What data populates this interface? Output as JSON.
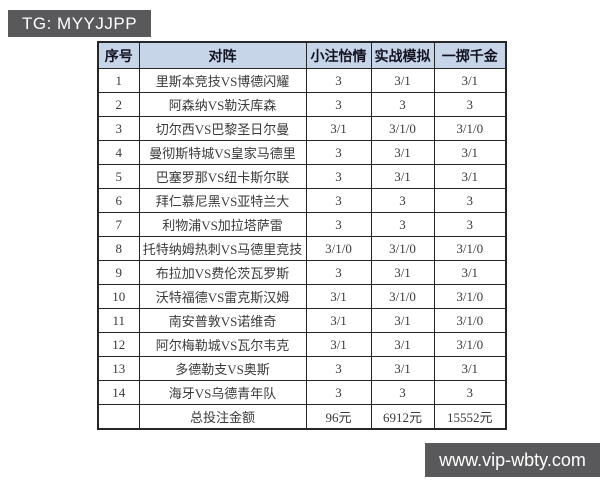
{
  "badges": {
    "tg": "TG: MYYJJPP",
    "site": "www.vip-wbty.com"
  },
  "colors": {
    "badge-bg": "#59595b",
    "badge-text": "#ffffff",
    "header-bg": "#c6d5e8",
    "border-color": "#262626",
    "page-bg": "#ffffff"
  },
  "table": {
    "headers": [
      "序号",
      "对阵",
      "小注怡情",
      "实战模拟",
      "一掷千金"
    ],
    "rows": [
      {
        "no": "1",
        "match": "里斯本竞技VS博德闪耀",
        "small": "3",
        "sim": "3/1",
        "big": "3/1"
      },
      {
        "no": "2",
        "match": "阿森纳VS勒沃库森",
        "small": "3",
        "sim": "3",
        "big": "3"
      },
      {
        "no": "3",
        "match": "切尔西VS巴黎圣日尔曼",
        "small": "3/1",
        "sim": "3/1/0",
        "big": "3/1/0"
      },
      {
        "no": "4",
        "match": "曼彻斯特城VS皇家马德里",
        "small": "3",
        "sim": "3/1",
        "big": "3/1"
      },
      {
        "no": "5",
        "match": "巴塞罗那VS纽卡斯尔联",
        "small": "3",
        "sim": "3/1",
        "big": "3/1"
      },
      {
        "no": "6",
        "match": "拜仁慕尼黑VS亚特兰大",
        "small": "3",
        "sim": "3",
        "big": "3"
      },
      {
        "no": "7",
        "match": "利物浦VS加拉塔萨雷",
        "small": "3",
        "sim": "3",
        "big": "3"
      },
      {
        "no": "8",
        "match": "托特纳姆热刺VS马德里竞技",
        "small": "3/1/0",
        "sim": "3/1/0",
        "big": "3/1/0"
      },
      {
        "no": "9",
        "match": "布拉加VS费伦茨瓦罗斯",
        "small": "3",
        "sim": "3/1",
        "big": "3/1"
      },
      {
        "no": "10",
        "match": "沃特福德VS雷克斯汉姆",
        "small": "3/1",
        "sim": "3/1/0",
        "big": "3/1/0"
      },
      {
        "no": "11",
        "match": "南安普敦VS诺维奇",
        "small": "3/1",
        "sim": "3/1",
        "big": "3/1/0"
      },
      {
        "no": "12",
        "match": "阿尔梅勒城VS瓦尔韦克",
        "small": "3/1",
        "sim": "3/1",
        "big": "3/1/0"
      },
      {
        "no": "13",
        "match": "多德勒支VS奥斯",
        "small": "3",
        "sim": "3/1",
        "big": "3/1"
      },
      {
        "no": "14",
        "match": "海牙VS乌德青年队",
        "small": "3",
        "sim": "3",
        "big": "3"
      }
    ],
    "total": {
      "no": "",
      "label": "总投注金额",
      "small": "96元",
      "sim": "6912元",
      "big": "15552元"
    }
  }
}
